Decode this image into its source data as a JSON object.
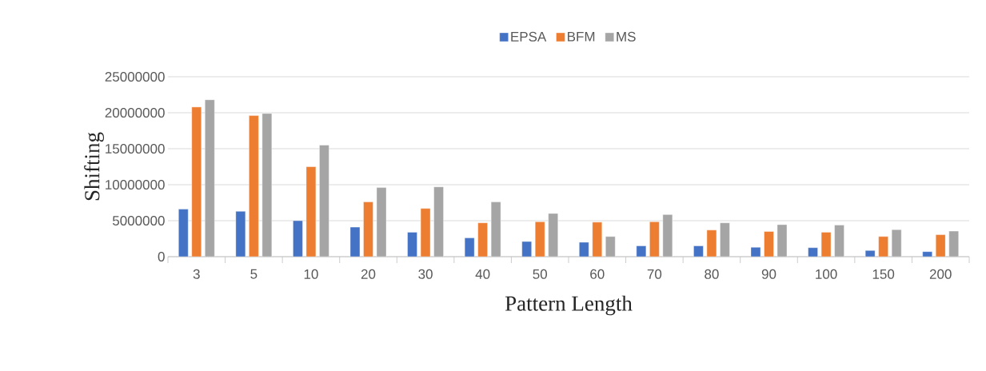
{
  "chart_data": {
    "type": "bar",
    "xlabel": "Pattern Length",
    "ylabel": "Shifting",
    "categories": [
      "3",
      "5",
      "10",
      "20",
      "30",
      "40",
      "50",
      "60",
      "70",
      "80",
      "90",
      "100",
      "150",
      "200"
    ],
    "series": [
      {
        "name": "EPSA",
        "color": "#4472c4",
        "values": [
          6600000,
          6300000,
          5000000,
          4100000,
          3400000,
          2600000,
          2100000,
          2000000,
          1500000,
          1500000,
          1300000,
          1250000,
          850000,
          700000
        ]
      },
      {
        "name": "BFM",
        "color": "#ed7d31",
        "values": [
          20800000,
          19600000,
          12500000,
          7600000,
          6700000,
          4700000,
          4850000,
          4800000,
          4850000,
          3700000,
          3500000,
          3400000,
          2800000,
          3050000
        ]
      },
      {
        "name": "MS",
        "color": "#a5a5a5",
        "values": [
          21800000,
          19900000,
          15500000,
          9600000,
          9700000,
          7600000,
          6000000,
          2800000,
          5850000,
          4700000,
          4450000,
          4400000,
          3750000,
          3550000
        ]
      }
    ],
    "ylim": [
      0,
      25000000
    ],
    "yticks": [
      0,
      5000000,
      10000000,
      15000000,
      20000000,
      25000000
    ],
    "grid": "y",
    "legend": "top"
  }
}
